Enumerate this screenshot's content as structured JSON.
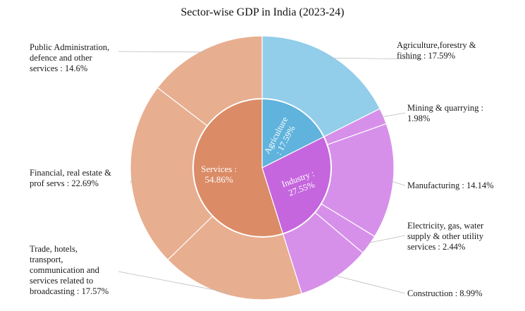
{
  "chart_data": {
    "type": "sunburst",
    "title": "Sector-wise GDP in India (2023-24)",
    "inner": [
      {
        "name": "Agriculture",
        "value": 17.59,
        "label_lines": [
          "Agriculture",
          ": 17.59%"
        ],
        "color": "#5fb3dc"
      },
      {
        "name": "Industry",
        "value": 27.55,
        "label_lines": [
          "Industry :",
          "27.55%"
        ],
        "color": "#c566de"
      },
      {
        "name": "Services",
        "value": 54.86,
        "label_lines": [
          "Services :",
          "54.86%"
        ],
        "color": "#db8b66"
      }
    ],
    "outer": [
      {
        "parent": "Agriculture",
        "value": 17.59,
        "label_lines": [
          "Agriculture,forestry &",
          "fishing : 17.59%"
        ],
        "color": "#92cde9"
      },
      {
        "parent": "Industry",
        "value": 1.98,
        "label_lines": [
          "Mining & quarrying :",
          "1.98%"
        ],
        "color": "#d690ea"
      },
      {
        "parent": "Industry",
        "value": 14.14,
        "label_lines": [
          "Manufacturing : 14.14%"
        ],
        "color": "#d690ea"
      },
      {
        "parent": "Industry",
        "value": 2.44,
        "label_lines": [
          "Electricity, gas, water",
          "supply & other utility",
          "services : 2.44%"
        ],
        "color": "#d690ea"
      },
      {
        "parent": "Industry",
        "value": 8.99,
        "label_lines": [
          "Construction : 8.99%"
        ],
        "color": "#d690ea"
      },
      {
        "parent": "Services",
        "value": 17.57,
        "label_lines": [
          "Trade, hotels,",
          "transport,",
          "communication and",
          "services related to",
          "broadcasting : 17.57%"
        ],
        "color": "#e8ae90"
      },
      {
        "parent": "Services",
        "value": 22.69,
        "label_lines": [
          "Financial, real estate &",
          "prof servs : 22.69%"
        ],
        "color": "#e8ae90"
      },
      {
        "parent": "Services",
        "value": 14.6,
        "label_lines": [
          "Public Administration,",
          "defence and other",
          "services : 14.6%"
        ],
        "color": "#e8ae90"
      }
    ],
    "colors": {
      "stroke": "#ffffff",
      "leader": "#bbbbbb",
      "inner_text": "#ffffff"
    }
  }
}
